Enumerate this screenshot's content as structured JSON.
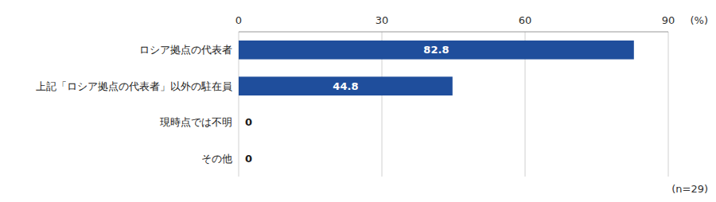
{
  "chart_data": {
    "type": "bar",
    "orientation": "horizontal",
    "categories": [
      "その他",
      "現時点では不明",
      "上記「ロシア拠点の代表者」以外の駐在員",
      "ロシア拠点の代表者"
    ],
    "values": [
      0,
      0,
      44.8,
      82.8
    ],
    "color": "#1F4E9C",
    "xlim": [
      0,
      90
    ],
    "xticks": [
      0,
      30,
      60,
      90
    ],
    "xlabel": "(%)",
    "annotations": [
      "(n=29)"
    ],
    "grid": true,
    "data_labels": true
  }
}
